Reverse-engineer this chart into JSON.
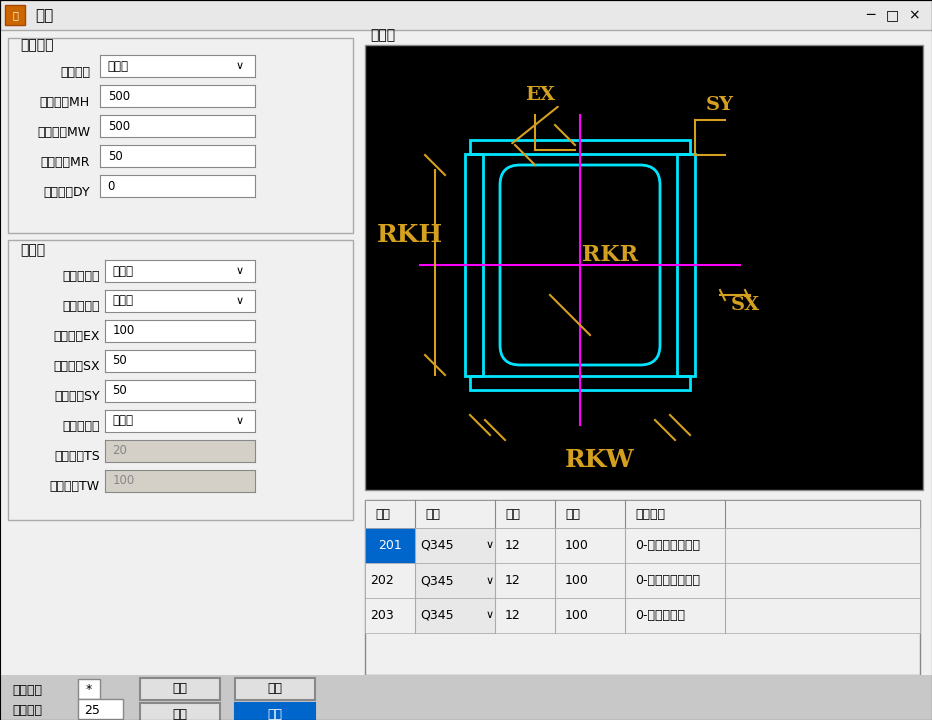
{
  "title": "人孔",
  "bg_color": "#f0f0f0",
  "window_bg": "#c8c8c8",
  "panel_bg": "#d4d0c8",
  "black_bg": "#000000",
  "cyan_color": "#00ffff",
  "magenta_color": "#ff00ff",
  "gold_color": "#d4a020",
  "white_color": "#ffffff",
  "blue_select": "#0066cc",
  "left_panel": {
    "section1_title": "人孔形状",
    "fields1": [
      [
        "人孔类型",
        "矩形人∨"
      ],
      [
        "人孔高度MH",
        "500"
      ],
      [
        "人孔宽度MW",
        "500"
      ],
      [
        "人孔半径MR",
        "50"
      ],
      [
        "人孔偏移DY",
        "0"
      ]
    ],
    "section2_title": "加劲肋",
    "fields2": [
      [
        "加劲肋类型",
        "水平出∨"
      ],
      [
        "加劲肋位置",
        "两侧设∨"
      ],
      [
        "延伸距离EX",
        "100"
      ],
      [
        "人孔边距SX",
        "50"
      ],
      [
        "人孔边距SY",
        "50"
      ],
      [
        "设置包边肋",
        "不设包∨"
      ],
      [
        "贴边边距TS",
        "20"
      ],
      [
        "贴边宽度TW",
        "100"
      ]
    ]
  },
  "diagram_title": "示意图",
  "table_headers": [
    "编号",
    "类别",
    "板厚",
    "板宽",
    "钢筋说明"
  ],
  "table_rows": [
    [
      "201",
      "Q345",
      "∨",
      "12",
      "100",
      "0-人孔竖向加劲肋"
    ],
    [
      "202",
      "Q345",
      "∨",
      "12",
      "100",
      "0-人孔横向加劲肋"
    ],
    [
      "203",
      "Q345",
      "∨",
      "12",
      "100",
      "0-圆形加劲肋"
    ]
  ],
  "bottom_left": {
    "label1": "绘制人孔",
    "star": "*",
    "label2": "绘图比例",
    "scale": "25",
    "btn1": "确定",
    "btn2": "取消",
    "btn3": "保存",
    "btn4": "打开"
  }
}
